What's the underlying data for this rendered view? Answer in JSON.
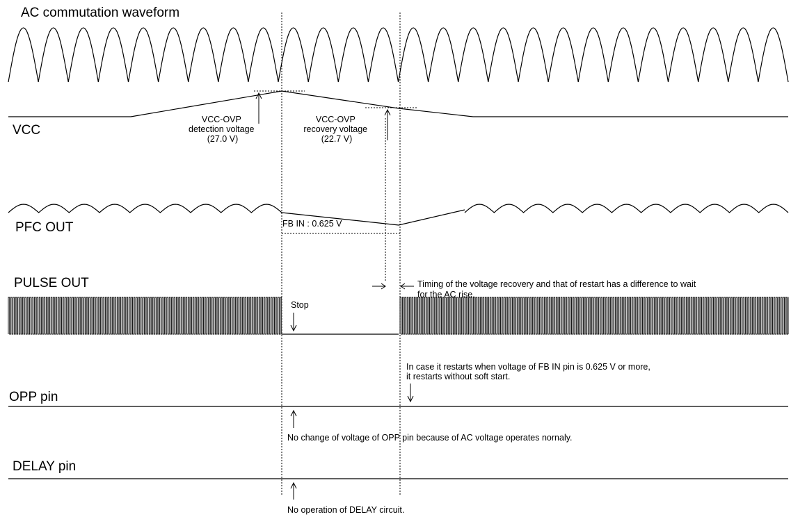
{
  "signals": {
    "ac": "AC commutation waveform",
    "vcc": "VCC",
    "pfc": "PFC OUT",
    "pulse": "PULSE OUT",
    "opp": "OPP pin",
    "delay": "DELAY pin"
  },
  "annotations": {
    "ovp_detect": [
      "VCC-OVP",
      "detection voltage",
      "(27.0 V)"
    ],
    "ovp_recover": [
      "VCC-OVP",
      "recovery voltage",
      "(22.7 V)"
    ],
    "fb_in": "FB IN : 0.625 V",
    "timing": [
      "Timing of the voltage recovery and that of restart has a difference to wait",
      "for the AC rise."
    ],
    "stop": "Stop",
    "restart": [
      "In case it restarts when voltage of FB IN pin is 0.625 V or more,",
      "it restarts without soft start."
    ],
    "opp_note": "No change of voltage of OPP pin  because of AC voltage operates nornaly.",
    "delay_note": "No operation of DELAY circuit."
  }
}
